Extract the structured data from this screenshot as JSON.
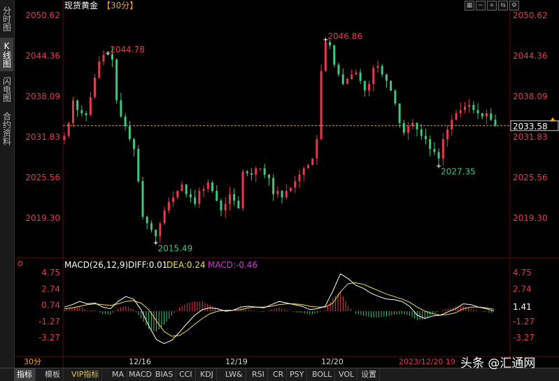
{
  "sidebar": {
    "items": [
      {
        "label": "分时图",
        "active": false
      },
      {
        "label": "K线图",
        "active": true
      },
      {
        "label": "闪电图",
        "active": false
      },
      {
        "label": "合约资料",
        "active": false
      }
    ]
  },
  "header": {
    "title": "现货黄金",
    "period": "【30分】"
  },
  "toolbar_icons": [
    "grid-icon",
    "minus-icon",
    "plus-icon",
    "switch-icon",
    "settings-icon"
  ],
  "current_price": "2033.58",
  "macd_current_label": "1.41",
  "macd_legend": {
    "name": "MACD(26,12,9)",
    "diff": "DIFF:0.01",
    "dea": "DEA:0.24",
    "macd": "MACD:-0.46"
  },
  "bottom": {
    "period_label": "30分",
    "datetime": "2023/12/20 19",
    "tabs": [
      {
        "label": "指标",
        "active": true,
        "vip": false
      },
      {
        "label": "模板",
        "active": false,
        "vip": false
      },
      {
        "label": "VIP指标",
        "active": false,
        "vip": true
      },
      {
        "label": "MA",
        "active": false,
        "vip": false
      },
      {
        "label": "MACD",
        "active": false,
        "vip": false
      },
      {
        "label": "BIAS",
        "active": false,
        "vip": false
      },
      {
        "label": "CCI",
        "active": false,
        "vip": false
      },
      {
        "label": "KDJ",
        "active": false,
        "vip": false
      },
      {
        "label": "LW&",
        "active": false,
        "vip": false
      },
      {
        "label": "RSI",
        "active": false,
        "vip": false
      },
      {
        "label": "CR",
        "active": false,
        "vip": false
      },
      {
        "label": "PSY",
        "active": false,
        "vip": false
      },
      {
        "label": "BOLL",
        "active": false,
        "vip": false
      },
      {
        "label": "VOL",
        "active": false,
        "vip": false
      },
      {
        "label": "设置",
        "active": false,
        "vip": false
      }
    ]
  },
  "watermark": "头条 @汇通网",
  "colors": {
    "up": "#e8384f",
    "down": "#3fc97e",
    "price_label": "#e8384f",
    "diff_line": "#ffffff",
    "dea_line": "#f2e24a",
    "macd_label": "#d43ad4",
    "current_line": "#f0a030"
  },
  "chart_data": [
    {
      "type": "candlestick",
      "title": "现货黄金【30分】",
      "y_ticks": [
        "2050.62",
        "2044.36",
        "2038.09",
        "2031.83",
        "2025.56",
        "2019.30"
      ],
      "ylim": [
        2014.5,
        2051.5
      ],
      "x_ticks": [
        "12/16",
        "12/19",
        "12/20"
      ],
      "annotations": [
        {
          "label": "2044.78",
          "kind": "high"
        },
        {
          "label": "2015.49",
          "kind": "low"
        },
        {
          "label": "2046.86",
          "kind": "high"
        },
        {
          "label": "2027.35",
          "kind": "low"
        }
      ],
      "reference_price": 2033.58,
      "close_path": [
        2032.0,
        2034.0,
        2037.5,
        2036.0,
        2035.5,
        2035.2,
        2038.0,
        2041.0,
        2043.5,
        2044.5,
        2044.6,
        2043.8,
        2037.5,
        2035.0,
        2033.5,
        2031.5,
        2030.0,
        2025.0,
        2019.5,
        2018.5,
        2017.5,
        2016.5,
        2018.5,
        2020.5,
        2021.8,
        2022.5,
        2023.5,
        2024.5,
        2023.0,
        2022.5,
        2021.5,
        2023.5,
        2023.8,
        2024.8,
        2023.5,
        2022.0,
        2020.5,
        2021.5,
        2023.0,
        2022.0,
        2020.8,
        2026.5,
        2026.2,
        2026.0,
        2027.0,
        2027.0,
        2026.0,
        2025.5,
        2023.0,
        2023.5,
        2022.5,
        2023.5,
        2024.0,
        2025.0,
        2026.0,
        2027.0,
        2027.5,
        2028.5,
        2031.5,
        2042.0,
        2046.5,
        2046.0,
        2043.0,
        2041.5,
        2040.0,
        2040.8,
        2041.5,
        2041.8,
        2040.5,
        2039.0,
        2040.0,
        2042.5,
        2042.8,
        2041.5,
        2040.5,
        2039.0,
        2037.0,
        2034.0,
        2032.5,
        2033.5,
        2034.0,
        2033.0,
        2032.0,
        2031.5,
        2030.0,
        2029.5,
        2028.5,
        2031.5,
        2033.0,
        2034.5,
        2035.5,
        2036.0,
        2036.5,
        2036.8,
        2036.0,
        2035.5,
        2035.0,
        2035.5,
        2034.5,
        2033.6
      ]
    },
    {
      "type": "macd",
      "name": "MACD(26,12,9)",
      "y_ticks": [
        "4.75",
        "2.74",
        "0.74",
        "-1.27",
        "-3.27"
      ],
      "ylim": [
        -4.2,
        5.3
      ],
      "diff": 0.01,
      "dea": 0.24,
      "macd": -0.46,
      "diff_path": [
        0.5,
        0.8,
        1.2,
        0.9,
        1.0,
        0.5,
        0.3,
        1.2,
        1.8,
        1.5,
        0.2,
        -1.8,
        -3.5,
        -4.0,
        -3.6,
        -2.6,
        -1.5,
        -0.5,
        0.2,
        0.4,
        0.3,
        0.0,
        0.1,
        0.5,
        0.6,
        0.5,
        0.4,
        0.8,
        1.2,
        1.0,
        0.8,
        0.6,
        0.2,
        0.3,
        0.6,
        2.5,
        4.6,
        4.0,
        3.2,
        2.8,
        2.2,
        1.8,
        1.5,
        1.4,
        1.2,
        0.6,
        -0.5,
        -0.9,
        -0.6,
        -0.5,
        -0.1,
        0.3,
        0.9,
        0.8,
        0.5,
        0.3,
        0.01
      ],
      "dea_path": [
        0.3,
        0.4,
        0.6,
        0.8,
        0.9,
        0.8,
        0.7,
        0.9,
        1.2,
        1.3,
        1.0,
        0.2,
        -1.2,
        -2.5,
        -3.1,
        -3.0,
        -2.4,
        -1.6,
        -0.9,
        -0.3,
        0.0,
        0.1,
        0.1,
        0.2,
        0.4,
        0.5,
        0.5,
        0.6,
        0.8,
        0.9,
        0.9,
        0.8,
        0.6,
        0.5,
        0.5,
        1.0,
        2.4,
        3.4,
        3.5,
        3.3,
        2.9,
        2.5,
        2.1,
        1.8,
        1.5,
        1.1,
        0.5,
        0.0,
        -0.3,
        -0.5,
        -0.4,
        -0.2,
        0.3,
        0.5,
        0.5,
        0.4,
        0.24
      ]
    }
  ]
}
